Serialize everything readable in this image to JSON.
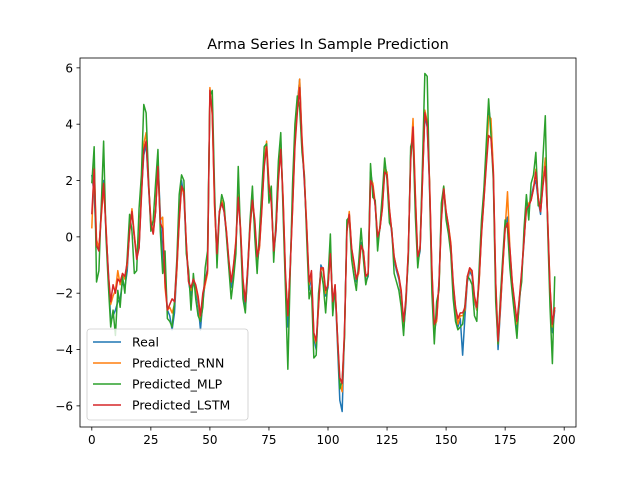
{
  "chart_data": {
    "type": "line",
    "title": "Arma Series In Sample Prediction",
    "xlabel": "",
    "ylabel": "",
    "xlim": [
      -5,
      205
    ],
    "ylim": [
      -6.75,
      6.35
    ],
    "xticks": [
      0,
      25,
      50,
      75,
      100,
      125,
      150,
      175,
      200
    ],
    "yticks": [
      -6,
      -4,
      -2,
      0,
      2,
      4,
      6
    ],
    "grid": false,
    "legend_position": "lower-left",
    "series": [
      {
        "name": "Real",
        "color": "#1f77b4",
        "values": [
          2.2,
          1.5,
          -0.3,
          -0.5,
          0.9,
          2.0,
          0.2,
          -1.2,
          -3.0,
          -2.8,
          -2.6,
          -2.3,
          -2.2,
          -1.6,
          -1.8,
          -1.2,
          0.3,
          0.9,
          0.0,
          -0.6,
          -0.4,
          1.6,
          2.9,
          3.3,
          1.8,
          0.4,
          0.2,
          0.9,
          2.7,
          0.8,
          -0.8,
          -1.4,
          -2.6,
          -2.8,
          -3.3,
          -2.7,
          -1.2,
          0.6,
          2.0,
          1.4,
          -0.4,
          -1.6,
          -2.1,
          -1.6,
          -1.9,
          -2.4,
          -3.3,
          -2.3,
          -1.6,
          -1.1,
          5.1,
          4.6,
          1.2,
          -0.7,
          0.9,
          1.2,
          0.9,
          0.1,
          -1.0,
          -1.8,
          -1.2,
          -0.3,
          1.6,
          0.1,
          -1.8,
          -2.6,
          -1.3,
          0.4,
          1.4,
          0.3,
          -1.0,
          -0.3,
          1.2,
          2.7,
          3.2,
          1.7,
          1.4,
          -0.6,
          0.2,
          2.3,
          3.4,
          1.2,
          -1.6,
          -3.2,
          -1.0,
          1.2,
          3.6,
          4.7,
          5.6,
          3.3,
          1.9,
          0.3,
          -1.9,
          -1.4,
          -3.6,
          -4.0,
          -2.4,
          -1.0,
          -1.2,
          -2.1,
          -1.8,
          -0.4,
          -2.6,
          -1.8,
          -3.8,
          -5.8,
          -6.2,
          -3.3,
          0.3,
          0.8,
          -0.5,
          -1.0,
          -1.6,
          -1.2,
          -0.2,
          -0.6,
          -1.6,
          -1.4,
          2.3,
          1.8,
          1.1,
          -0.2,
          0.3,
          1.1,
          2.6,
          2.2,
          0.9,
          0.1,
          -0.8,
          -1.2,
          -1.5,
          -2.1,
          -3.3,
          -2.4,
          -0.6,
          2.9,
          3.7,
          1.2,
          -0.9,
          -0.5,
          2.2,
          4.3,
          3.9,
          1.8,
          -1.4,
          -3.4,
          -2.9,
          -1.6,
          0.8,
          1.7,
          0.8,
          0.3,
          -0.3,
          -1.8,
          -2.7,
          -3.2,
          -2.9,
          -4.2,
          -2.8,
          -1.6,
          -1.2,
          -1.4,
          -2.3,
          -2.6,
          -1.5,
          0.2,
          1.4,
          2.8,
          4.6,
          4.0,
          2.2,
          -1.8,
          -4.0,
          -2.6,
          -1.0,
          0.4,
          0.7,
          -0.6,
          -1.8,
          -2.6,
          -3.3,
          -2.4,
          -1.3,
          -0.2,
          1.2,
          1.0,
          1.4,
          1.8,
          2.0,
          1.3,
          0.8,
          2.0,
          2.7,
          0.6,
          -2.0,
          -3.4,
          -2.6
        ]
      },
      {
        "name": "Predicted_RNN",
        "color": "#ff7f0e",
        "values": [
          0.3,
          2.6,
          -0.1,
          -0.4,
          0.7,
          1.8,
          0.4,
          -1.4,
          -2.4,
          -2.1,
          -1.9,
          -1.2,
          -1.7,
          -1.3,
          -1.5,
          -1.0,
          0.2,
          1.0,
          0.1,
          -0.7,
          -0.3,
          1.5,
          3.3,
          3.7,
          1.9,
          0.6,
          0.1,
          1.0,
          2.4,
          0.6,
          0.7,
          -1.8,
          -2.6,
          -2.5,
          -2.7,
          -2.4,
          -1.2,
          0.5,
          1.8,
          1.5,
          -0.2,
          -1.6,
          -1.9,
          -1.6,
          -1.8,
          -2.2,
          -3.0,
          -2.1,
          -1.7,
          -1.3,
          5.3,
          4.3,
          1.0,
          -0.8,
          0.8,
          1.3,
          1.0,
          0.2,
          -0.9,
          -1.6,
          -1.1,
          -0.1,
          1.5,
          0.3,
          -1.6,
          -2.3,
          -1.2,
          0.3,
          1.3,
          0.5,
          -0.8,
          -0.4,
          1.0,
          2.6,
          3.4,
          1.9,
          1.3,
          -0.5,
          0.3,
          2.1,
          3.2,
          1.4,
          -1.4,
          -2.8,
          -1.1,
          1.0,
          3.3,
          4.6,
          5.6,
          3.5,
          2.1,
          0.4,
          -1.7,
          -1.3,
          -3.5,
          -3.8,
          -2.5,
          -1.1,
          -1.2,
          -2.0,
          -1.7,
          -0.6,
          -2.4,
          -1.7,
          -3.6,
          -5.2,
          -5.5,
          -3.4,
          0.2,
          0.9,
          -0.4,
          -1.0,
          -1.5,
          -1.3,
          -0.3,
          -0.5,
          -1.4,
          -1.3,
          2.1,
          1.9,
          1.2,
          0.0,
          0.3,
          1.0,
          2.4,
          2.3,
          1.0,
          0.2,
          -0.7,
          -1.1,
          -1.4,
          -2.0,
          -3.1,
          -2.3,
          -0.5,
          2.8,
          4.2,
          1.5,
          -0.8,
          -0.4,
          2.0,
          4.5,
          4.1,
          2.0,
          -1.2,
          -3.2,
          -3.0,
          -1.7,
          0.6,
          1.8,
          0.9,
          0.4,
          -0.2,
          -1.7,
          -2.5,
          -3.1,
          -2.8,
          -2.8,
          -2.6,
          -1.5,
          -1.1,
          -1.3,
          -2.2,
          -2.6,
          -1.6,
          0.1,
          1.3,
          2.6,
          4.3,
          4.2,
          2.4,
          -1.6,
          -3.8,
          -2.5,
          -1.1,
          0.3,
          1.6,
          -0.4,
          -1.6,
          -2.4,
          -3.1,
          -2.3,
          -1.3,
          -0.1,
          1.0,
          1.2,
          1.3,
          1.7,
          2.4,
          1.4,
          0.9,
          1.9,
          2.8,
          0.7,
          -1.8,
          -3.2,
          -2.5
        ]
      },
      {
        "name": "Predicted_MLP",
        "color": "#2ca02c",
        "values": [
          1.9,
          3.2,
          -1.6,
          -1.2,
          1.1,
          3.4,
          0.0,
          -1.7,
          -3.2,
          -2.6,
          -3.5,
          -1.9,
          -2.5,
          -1.4,
          -2.0,
          -0.7,
          0.8,
          0.2,
          -1.3,
          -1.2,
          1.0,
          2.2,
          4.7,
          4.4,
          2.1,
          0.2,
          0.6,
          1.9,
          3.1,
          0.2,
          -1.3,
          -0.5,
          -2.9,
          -3.0,
          -3.2,
          -2.3,
          -0.8,
          1.5,
          2.2,
          2.0,
          -0.6,
          -1.2,
          -2.6,
          -1.3,
          -2.2,
          -2.8,
          -3.0,
          -2.5,
          -1.1,
          -0.5,
          5.0,
          5.2,
          1.6,
          -1.1,
          0.8,
          1.5,
          1.2,
          0.0,
          -1.1,
          -2.2,
          -1.5,
          -0.6,
          2.5,
          0.0,
          -2.2,
          -2.7,
          -1.1,
          0.6,
          1.8,
          0.0,
          -1.3,
          0.2,
          1.7,
          3.2,
          3.3,
          1.2,
          1.8,
          -0.9,
          0.6,
          2.7,
          3.7,
          0.8,
          -1.9,
          -4.7,
          -1.3,
          1.9,
          4.0,
          5.0,
          4.6,
          3.0,
          2.2,
          -0.1,
          -2.2,
          -1.8,
          -4.3,
          -4.2,
          -2.0,
          -1.2,
          -1.7,
          -2.7,
          -1.5,
          0.1,
          -2.8,
          -1.8,
          -3.5,
          -5.4,
          -5.1,
          -3.6,
          0.6,
          0.7,
          -0.8,
          -1.4,
          -1.9,
          -0.9,
          0.3,
          -0.8,
          -1.7,
          -1.3,
          2.6,
          1.4,
          1.3,
          -0.5,
          0.4,
          1.5,
          2.8,
          2.0,
          0.5,
          0.3,
          -1.3,
          -1.6,
          -1.9,
          -2.5,
          -3.5,
          -2.1,
          -0.8,
          3.2,
          3.5,
          0.7,
          -1.1,
          -0.3,
          2.6,
          5.8,
          5.7,
          1.7,
          -2.0,
          -3.8,
          -2.3,
          -1.9,
          1.2,
          1.8,
          0.6,
          0.1,
          -0.6,
          -2.2,
          -3.0,
          -3.3,
          -3.2,
          -3.1,
          -2.4,
          -1.4,
          -1.5,
          -1.7,
          -2.8,
          -3.0,
          -1.1,
          0.6,
          1.7,
          3.3,
          4.9,
          3.6,
          2.0,
          -2.3,
          -3.8,
          -2.1,
          -0.7,
          0.6,
          0.3,
          -1.1,
          -2.0,
          -2.8,
          -3.6,
          -2.2,
          -1.6,
          0.3,
          1.5,
          0.6,
          1.9,
          2.2,
          3.0,
          1.1,
          1.2,
          2.8,
          4.3,
          0.3,
          -2.5,
          -4.5,
          -1.4
        ]
      },
      {
        "name": "Predicted_LSTM",
        "color": "#d62728",
        "values": [
          0.8,
          2.4,
          -0.3,
          -0.5,
          0.8,
          1.9,
          0.3,
          -1.3,
          -2.3,
          -1.7,
          -2.0,
          -1.5,
          -1.6,
          -1.3,
          -1.4,
          -0.9,
          0.2,
          0.9,
          0.0,
          -0.8,
          -0.4,
          1.4,
          3.1,
          3.4,
          1.9,
          0.5,
          0.1,
          0.9,
          2.5,
          0.5,
          0.3,
          -1.6,
          -2.6,
          -2.4,
          -2.2,
          -2.3,
          -1.0,
          0.6,
          1.8,
          1.6,
          -0.2,
          -1.6,
          -1.8,
          -1.5,
          -1.7,
          -2.1,
          -2.8,
          -2.0,
          -1.6,
          -1.2,
          5.2,
          4.4,
          1.1,
          -0.6,
          0.9,
          1.2,
          0.9,
          0.2,
          -0.8,
          -1.6,
          -1.0,
          -0.2,
          1.4,
          0.2,
          -1.5,
          -2.3,
          -1.1,
          0.4,
          1.3,
          0.6,
          -0.7,
          -0.3,
          1.0,
          2.5,
          3.2,
          1.8,
          1.2,
          -0.5,
          0.3,
          2.0,
          3.1,
          1.3,
          -1.3,
          -2.8,
          -1.1,
          1.0,
          3.2,
          4.4,
          5.3,
          3.4,
          2.0,
          0.3,
          -1.6,
          -1.2,
          -3.4,
          -3.7,
          -2.4,
          -1.1,
          -1.1,
          -1.9,
          -1.7,
          -0.6,
          -2.3,
          -1.7,
          -3.5,
          -5.0,
          -5.2,
          -3.3,
          0.2,
          0.8,
          -0.4,
          -0.9,
          -1.5,
          -1.2,
          -0.3,
          -0.5,
          -1.4,
          -1.3,
          2.0,
          1.8,
          1.1,
          0.0,
          0.3,
          1.0,
          2.3,
          2.2,
          1.0,
          0.2,
          -0.7,
          -1.1,
          -1.4,
          -1.9,
          -3.0,
          -2.2,
          -0.5,
          2.7,
          3.9,
          1.4,
          -0.7,
          -0.4,
          2.0,
          4.4,
          4.0,
          1.9,
          -1.2,
          -3.1,
          -2.9,
          -1.6,
          0.6,
          1.7,
          0.9,
          0.4,
          -0.3,
          -1.6,
          -2.5,
          -2.9,
          -2.7,
          -2.7,
          -2.5,
          -1.4,
          -1.1,
          -1.2,
          -2.1,
          -2.5,
          -1.5,
          0.1,
          1.3,
          2.5,
          3.6,
          3.5,
          2.3,
          -1.6,
          -3.7,
          -2.4,
          -1.0,
          0.3,
          0.5,
          -0.4,
          -1.6,
          -2.3,
          -3.0,
          -2.2,
          -1.2,
          -0.1,
          1.0,
          1.1,
          1.3,
          1.7,
          2.3,
          1.4,
          0.9,
          1.8,
          2.5,
          0.6,
          -1.8,
          -3.1,
          -2.5
        ]
      }
    ]
  }
}
